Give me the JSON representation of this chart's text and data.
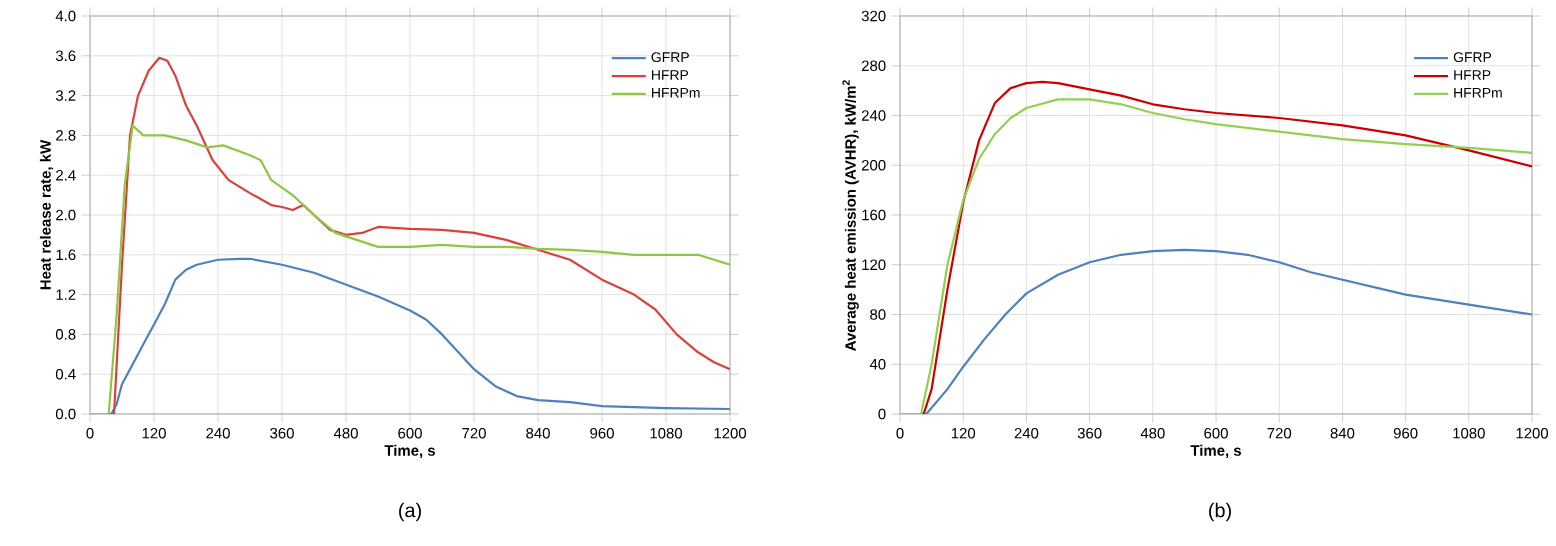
{
  "chart_data": [
    {
      "type": "line",
      "xlabel": "Time, s",
      "ylabel": "Heat release rate,  kW",
      "annotations": [
        "(a)"
      ],
      "xlim": [
        0,
        1200
      ],
      "ylim": [
        0,
        4
      ],
      "xticks": [
        0,
        120,
        240,
        360,
        480,
        600,
        720,
        840,
        960,
        1080,
        1200
      ],
      "yticks": [
        {
          "value": 0,
          "label": "0.0"
        },
        {
          "value": 0.4,
          "label": "0.4"
        },
        {
          "value": 0.8,
          "label": "0.8"
        },
        {
          "value": 1.2,
          "label": "1.2"
        },
        {
          "value": 1.6,
          "label": "1.6"
        },
        {
          "value": 2,
          "label": "2.0"
        },
        {
          "value": 2.4,
          "label": "2.4"
        },
        {
          "value": 2.8,
          "label": "2.8"
        },
        {
          "value": 3.2,
          "label": "3.2"
        },
        {
          "value": 3.6,
          "label": "3.6"
        },
        {
          "value": 4,
          "label": "4.0"
        }
      ],
      "grid": true,
      "legend": "top right",
      "series": [
        {
          "name": "GFRP",
          "color": "#4f81bd",
          "x": [
            0,
            40,
            50,
            60,
            80,
            100,
            120,
            140,
            160,
            180,
            200,
            240,
            280,
            300,
            360,
            420,
            480,
            540,
            600,
            630,
            660,
            720,
            760,
            800,
            840,
            900,
            960,
            1020,
            1080,
            1200
          ],
          "values": [
            0,
            0,
            0.1,
            0.3,
            0.5,
            0.7,
            0.9,
            1.1,
            1.35,
            1.45,
            1.5,
            1.55,
            1.56,
            1.56,
            1.5,
            1.42,
            1.3,
            1.18,
            1.04,
            0.95,
            0.8,
            0.45,
            0.28,
            0.18,
            0.14,
            0.12,
            0.08,
            0.07,
            0.06,
            0.05
          ]
        },
        {
          "name": "HFRP",
          "color": "#d9423c",
          "x": [
            0,
            45,
            60,
            75,
            90,
            110,
            130,
            145,
            160,
            180,
            200,
            230,
            260,
            300,
            340,
            360,
            380,
            400,
            420,
            450,
            480,
            510,
            540,
            600,
            660,
            720,
            780,
            840,
            900,
            960,
            1020,
            1060,
            1100,
            1140,
            1170,
            1200
          ],
          "values": [
            0,
            0,
            1.5,
            2.8,
            3.2,
            3.45,
            3.58,
            3.55,
            3.4,
            3.1,
            2.9,
            2.55,
            2.35,
            2.22,
            2.1,
            2.08,
            2.05,
            2.1,
            2.0,
            1.85,
            1.8,
            1.82,
            1.88,
            1.86,
            1.85,
            1.82,
            1.75,
            1.65,
            1.55,
            1.35,
            1.2,
            1.05,
            0.8,
            0.62,
            0.52,
            0.45
          ]
        },
        {
          "name": "HFRPm",
          "color": "#8fc646",
          "x": [
            0,
            35,
            50,
            65,
            80,
            100,
            140,
            180,
            220,
            250,
            300,
            320,
            340,
            380,
            420,
            460,
            500,
            540,
            600,
            660,
            720,
            780,
            840,
            900,
            960,
            1020,
            1080,
            1140,
            1200
          ],
          "values": [
            0,
            0,
            1.0,
            2.3,
            2.9,
            2.8,
            2.8,
            2.75,
            2.68,
            2.7,
            2.6,
            2.55,
            2.35,
            2.2,
            2.0,
            1.82,
            1.75,
            1.68,
            1.68,
            1.7,
            1.68,
            1.68,
            1.66,
            1.65,
            1.63,
            1.6,
            1.6,
            1.6,
            1.5
          ]
        }
      ]
    },
    {
      "type": "line",
      "xlabel": "Time, s",
      "ylabel": "Average heat emission (AVHR), kW/m$^{2}$",
      "annotations": [
        "(b)"
      ],
      "xlim": [
        0,
        1200
      ],
      "ylim": [
        0,
        320
      ],
      "xticks": [
        0,
        120,
        240,
        360,
        480,
        600,
        720,
        840,
        960,
        1080,
        1200
      ],
      "yticks": [
        0,
        40,
        80,
        120,
        160,
        200,
        240,
        280,
        320
      ],
      "grid": true,
      "legend": "top right",
      "series": [
        {
          "name": "GFRP",
          "color": "#4f81bd",
          "x": [
            0,
            50,
            60,
            90,
            120,
            160,
            200,
            240,
            300,
            360,
            420,
            480,
            540,
            600,
            660,
            720,
            780,
            840,
            900,
            960,
            1020,
            1080,
            1140,
            1200
          ],
          "values": [
            0,
            0,
            5,
            20,
            38,
            60,
            80,
            97,
            112,
            122,
            128,
            131,
            132,
            131,
            128,
            122,
            114,
            108,
            102,
            96,
            92,
            88,
            84,
            80
          ]
        },
        {
          "name": "HFRP",
          "color": "#cc0000",
          "x": [
            0,
            45,
            60,
            90,
            120,
            150,
            180,
            210,
            240,
            270,
            300,
            360,
            420,
            480,
            540,
            600,
            720,
            840,
            960,
            1080,
            1200
          ],
          "values": [
            0,
            0,
            20,
            100,
            170,
            220,
            250,
            262,
            266,
            267,
            266,
            261,
            256,
            249,
            245,
            242,
            238,
            232,
            224,
            212,
            199
          ]
        },
        {
          "name": "HFRPm",
          "color": "#92d050",
          "x": [
            0,
            40,
            60,
            90,
            120,
            150,
            180,
            210,
            240,
            300,
            360,
            420,
            480,
            540,
            600,
            720,
            840,
            960,
            1080,
            1200
          ],
          "values": [
            0,
            0,
            40,
            120,
            172,
            205,
            225,
            238,
            246,
            253,
            253,
            249,
            242,
            237,
            233,
            227,
            221,
            217,
            214,
            210
          ]
        }
      ]
    }
  ]
}
